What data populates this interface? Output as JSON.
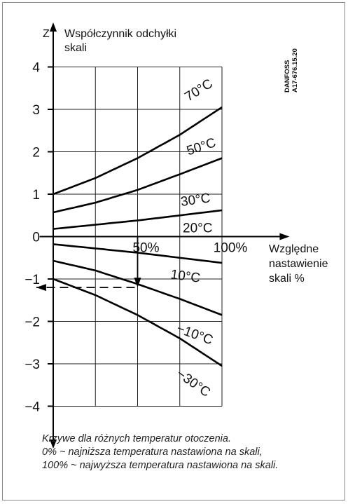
{
  "chart_data": {
    "type": "line",
    "y_axis_symbol": "Z",
    "y_axis_label_line1": "Współczynnik odchyłki",
    "y_axis_label_line2": "skali",
    "x_axis_label_line1": "Względne",
    "x_axis_label_line2": "nastawienie",
    "x_axis_label_line3": "skali %",
    "ylim": [
      -4.4,
      4.4
    ],
    "xlim": [
      0,
      140
    ],
    "y_ticks": [
      "4",
      "3",
      "2",
      "1",
      "0",
      "−1",
      "−2",
      "−3",
      "−4"
    ],
    "x_ticks": [
      "50%",
      "100%"
    ],
    "grid": true,
    "series": [
      {
        "name": "70°C",
        "x": [
          0,
          25,
          50,
          75,
          100
        ],
        "y": [
          1.0,
          1.38,
          1.85,
          2.4,
          3.05
        ]
      },
      {
        "name": "50°C",
        "x": [
          0,
          25,
          50,
          75,
          100
        ],
        "y": [
          0.57,
          0.8,
          1.1,
          1.47,
          1.85
        ]
      },
      {
        "name": "30°C",
        "x": [
          0,
          25,
          50,
          75,
          100
        ],
        "y": [
          0.18,
          0.28,
          0.38,
          0.5,
          0.62
        ]
      },
      {
        "name": "20°C",
        "x": [
          0,
          100
        ],
        "y": [
          0.0,
          0.0
        ]
      },
      {
        "name": "10°C",
        "x": [
          0,
          25,
          50,
          75,
          100
        ],
        "y": [
          -0.18,
          -0.28,
          -0.38,
          -0.5,
          -0.62
        ]
      },
      {
        "name": "−10°C",
        "x": [
          0,
          25,
          50,
          75,
          100
        ],
        "y": [
          -0.57,
          -0.8,
          -1.12,
          -1.47,
          -1.85
        ]
      },
      {
        "name": "−30°C",
        "x": [
          0,
          25,
          50,
          75,
          100
        ],
        "y": [
          -1.0,
          -1.38,
          -1.85,
          -2.4,
          -3.05
        ]
      }
    ],
    "annotation": {
      "x": 50,
      "y": -1.2
    },
    "side_label_line1": "DANFOSS",
    "side_label_line2": "A17-676.15.20"
  },
  "caption": {
    "line1": "Krzywe dla różnych temperatur otoczenia.",
    "line2": "0% ~ najniższa temperatura nastawiona na skali,",
    "line3": "100% ~ najwyższa temperatura nastawiona na skali."
  }
}
